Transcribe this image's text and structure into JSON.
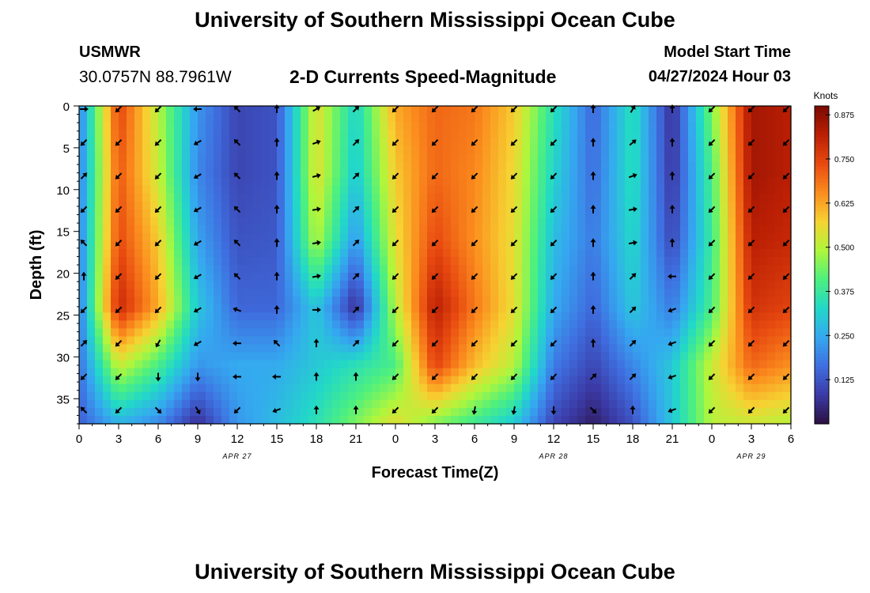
{
  "header": {
    "title": "University of Southern Mississippi Ocean Cube",
    "station": "USMWR",
    "coordinates": "30.0757N  88.7961W",
    "subtitle": "2-D Currents Speed-Magnitude",
    "model_start_label": "Model Start Time",
    "model_start_value": "04/27/2024 Hour 03"
  },
  "footer": {
    "title": "University of Southern Mississippi Ocean Cube"
  },
  "chart_data": {
    "type": "heatmap",
    "title": "2-D Currents Speed-Magnitude",
    "xlabel": "Forecast Time(Z)",
    "ylabel": "Depth (ft)",
    "x_ticks": [
      "0",
      "3",
      "6",
      "9",
      "12",
      "15",
      "18",
      "21",
      "0",
      "3",
      "6",
      "9",
      "12",
      "15",
      "18",
      "21",
      "0",
      "3",
      "6"
    ],
    "date_labels": [
      {
        "text": "APR 27",
        "at_hour": 12
      },
      {
        "text": "APR 28",
        "at_hour": 36
      },
      {
        "text": "APR 29",
        "at_hour": 51
      }
    ],
    "x_range_hours": [
      0,
      54
    ],
    "y_ticks": [
      0,
      5,
      10,
      15,
      20,
      25,
      30,
      35
    ],
    "y_range_ft": [
      0,
      38
    ],
    "colorbar": {
      "label": "Knots",
      "range": [
        0,
        0.9
      ],
      "ticks": [
        "0.125",
        "0.250",
        "0.375",
        "0.500",
        "0.625",
        "0.750",
        "0.875"
      ],
      "colors": [
        "#2b1040",
        "#3b3aa6",
        "#3f6fe0",
        "#35a8f0",
        "#22d8c8",
        "#4ef07e",
        "#b0f63c",
        "#f6d232",
        "#fb8c1e",
        "#e84a10",
        "#bb1f04",
        "#7a0a03"
      ]
    },
    "speed_profiles": [
      {
        "hour": 0,
        "speeds": [
          0.18,
          0.18,
          0.18,
          0.17,
          0.16,
          0.14
        ]
      },
      {
        "hour": 3,
        "speeds": [
          0.75,
          0.72,
          0.74,
          0.8,
          0.52,
          0.26
        ]
      },
      {
        "hour": 6,
        "speeds": [
          0.5,
          0.52,
          0.58,
          0.62,
          0.4,
          0.2
        ]
      },
      {
        "hour": 9,
        "speeds": [
          0.22,
          0.2,
          0.24,
          0.3,
          0.22,
          0.06
        ]
      },
      {
        "hour": 12,
        "speeds": [
          0.1,
          0.1,
          0.12,
          0.15,
          0.25,
          0.22
        ]
      },
      {
        "hour": 15,
        "speeds": [
          0.12,
          0.12,
          0.13,
          0.15,
          0.25,
          0.28
        ]
      },
      {
        "hour": 18,
        "speeds": [
          0.55,
          0.55,
          0.5,
          0.3,
          0.3,
          0.35
        ]
      },
      {
        "hour": 21,
        "speeds": [
          0.32,
          0.3,
          0.22,
          0.06,
          0.35,
          0.45
        ]
      },
      {
        "hour": 24,
        "speeds": [
          0.62,
          0.58,
          0.55,
          0.5,
          0.4,
          0.55
        ]
      },
      {
        "hour": 27,
        "speeds": [
          0.7,
          0.7,
          0.74,
          0.82,
          0.75,
          0.45
        ]
      },
      {
        "hour": 30,
        "speeds": [
          0.68,
          0.66,
          0.65,
          0.68,
          0.6,
          0.38
        ]
      },
      {
        "hour": 33,
        "speeds": [
          0.58,
          0.56,
          0.55,
          0.55,
          0.5,
          0.3
        ]
      },
      {
        "hour": 36,
        "speeds": [
          0.35,
          0.32,
          0.28,
          0.25,
          0.18,
          0.1
        ]
      },
      {
        "hour": 39,
        "speeds": [
          0.15,
          0.16,
          0.18,
          0.15,
          0.1,
          0.03
        ]
      },
      {
        "hour": 42,
        "speeds": [
          0.35,
          0.35,
          0.33,
          0.3,
          0.2,
          0.12
        ]
      },
      {
        "hour": 45,
        "speeds": [
          0.06,
          0.07,
          0.1,
          0.18,
          0.3,
          0.3
        ]
      },
      {
        "hour": 48,
        "speeds": [
          0.45,
          0.4,
          0.38,
          0.4,
          0.52,
          0.5
        ]
      },
      {
        "hour": 51,
        "speeds": [
          0.85,
          0.85,
          0.82,
          0.78,
          0.7,
          0.52
        ]
      },
      {
        "hour": 54,
        "speeds": [
          0.82,
          0.82,
          0.8,
          0.75,
          0.65,
          0.5
        ]
      }
    ],
    "profile_depths_ft": [
      0,
      8,
      16,
      24,
      31,
      38
    ],
    "vector_depths_ft": [
      0,
      4,
      8,
      12,
      16,
      20,
      24,
      28,
      32,
      36
    ],
    "vector_hours": [
      0,
      3,
      6,
      9,
      12,
      15,
      18,
      21,
      24,
      27,
      30,
      33,
      36,
      39,
      42,
      45,
      48,
      51,
      54
    ],
    "vector_directions_deg": [
      [
        0,
        135,
        315,
        135,
        225,
        270,
        135,
        315,
        135,
        225
      ],
      [
        135,
        135,
        135,
        135,
        135,
        135,
        135,
        135,
        135,
        135
      ],
      [
        135,
        135,
        135,
        135,
        135,
        135,
        135,
        120,
        90,
        45
      ],
      [
        180,
        150,
        150,
        150,
        150,
        150,
        150,
        150,
        90,
        60
      ],
      [
        225,
        225,
        225,
        225,
        225,
        225,
        200,
        180,
        180,
        135
      ],
      [
        270,
        270,
        270,
        270,
        270,
        270,
        270,
        225,
        180,
        160
      ],
      [
        330,
        340,
        345,
        350,
        350,
        350,
        0,
        270,
        270,
        270
      ],
      [
        315,
        315,
        315,
        315,
        315,
        315,
        315,
        315,
        270,
        270
      ],
      [
        135,
        135,
        135,
        135,
        135,
        135,
        135,
        135,
        135,
        135
      ],
      [
        135,
        135,
        135,
        135,
        135,
        135,
        135,
        135,
        135,
        135
      ],
      [
        135,
        135,
        135,
        135,
        135,
        135,
        135,
        135,
        135,
        100
      ],
      [
        135,
        135,
        135,
        135,
        135,
        135,
        135,
        135,
        135,
        100
      ],
      [
        135,
        135,
        135,
        135,
        135,
        135,
        135,
        135,
        135,
        90
      ],
      [
        270,
        270,
        270,
        270,
        270,
        270,
        270,
        270,
        315,
        45
      ],
      [
        300,
        320,
        340,
        350,
        350,
        315,
        315,
        315,
        315,
        270
      ],
      [
        270,
        270,
        270,
        270,
        270,
        180,
        160,
        160,
        160,
        160
      ],
      [
        135,
        135,
        135,
        135,
        135,
        135,
        135,
        135,
        135,
        135
      ],
      [
        135,
        135,
        135,
        135,
        135,
        135,
        135,
        135,
        135,
        135
      ],
      [
        135,
        135,
        135,
        135,
        135,
        135,
        135,
        135,
        135,
        135
      ]
    ]
  }
}
